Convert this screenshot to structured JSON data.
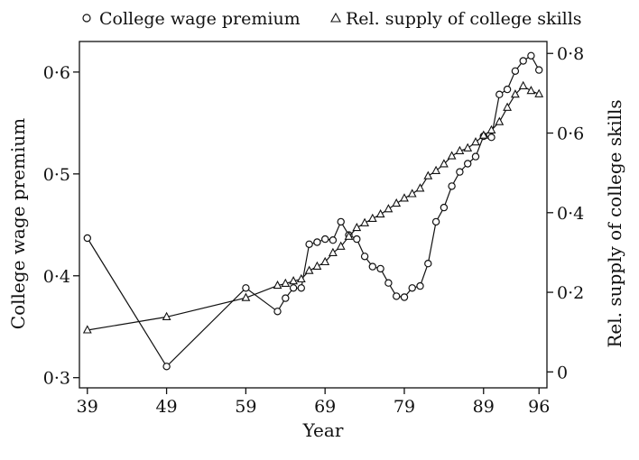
{
  "chart_data": {
    "type": "line",
    "xlabel": "Year",
    "ylabel_left": "College wage premium",
    "ylabel_right": "Rel. supply of college skills",
    "x_ticks": [
      39,
      49,
      59,
      69,
      79,
      89,
      96
    ],
    "x_tick_labels": [
      "39",
      "49",
      "59",
      "69",
      "79",
      "89",
      "96"
    ],
    "xlim": [
      38,
      97
    ],
    "y_left_ticks": [
      0.3,
      0.4,
      0.5,
      0.6
    ],
    "y_left_tick_labels": [
      "0·3",
      "0·4",
      "0·5",
      "0·6"
    ],
    "ylim_left": [
      0.29,
      0.63
    ],
    "y_right_ticks": [
      0,
      0.2,
      0.4,
      0.6,
      0.8
    ],
    "y_right_tick_labels": [
      "0",
      "0·2",
      "0·4",
      "0·6",
      "0·8"
    ],
    "ylim_right": [
      -0.04,
      0.83
    ],
    "legend_position": "top",
    "grid": false,
    "series": [
      {
        "name": "College wage premium",
        "marker": "circle",
        "axis": "left",
        "x": [
          39,
          49,
          59,
          63,
          64,
          65,
          66,
          67,
          68,
          69,
          70,
          71,
          72,
          73,
          74,
          75,
          76,
          77,
          78,
          79,
          80,
          81,
          82,
          83,
          84,
          85,
          86,
          87,
          88,
          89,
          90,
          91,
          92,
          93,
          94,
          95,
          96
        ],
        "y": [
          0.437,
          0.311,
          0.388,
          0.365,
          0.378,
          0.388,
          0.388,
          0.431,
          0.433,
          0.436,
          0.435,
          0.453,
          0.44,
          0.436,
          0.419,
          0.409,
          0.407,
          0.393,
          0.38,
          0.379,
          0.388,
          0.39,
          0.412,
          0.453,
          0.467,
          0.488,
          0.502,
          0.51,
          0.517,
          0.537,
          0.536,
          0.578,
          0.583,
          0.601,
          0.611,
          0.616,
          0.602
        ]
      },
      {
        "name": "Rel. supply of college skills",
        "marker": "triangle",
        "axis": "right",
        "x": [
          39,
          49,
          59,
          63,
          64,
          65,
          66,
          67,
          68,
          69,
          70,
          71,
          72,
          73,
          74,
          75,
          76,
          77,
          78,
          79,
          80,
          81,
          82,
          83,
          84,
          85,
          86,
          87,
          88,
          89,
          90,
          91,
          92,
          93,
          94,
          95,
          96
        ],
        "y": [
          0.105,
          0.138,
          0.186,
          0.217,
          0.222,
          0.228,
          0.233,
          0.254,
          0.265,
          0.276,
          0.299,
          0.315,
          0.34,
          0.362,
          0.374,
          0.385,
          0.396,
          0.409,
          0.423,
          0.436,
          0.447,
          0.461,
          0.492,
          0.505,
          0.522,
          0.542,
          0.555,
          0.562,
          0.577,
          0.594,
          0.607,
          0.628,
          0.664,
          0.697,
          0.718,
          0.706,
          0.698
        ]
      }
    ]
  }
}
